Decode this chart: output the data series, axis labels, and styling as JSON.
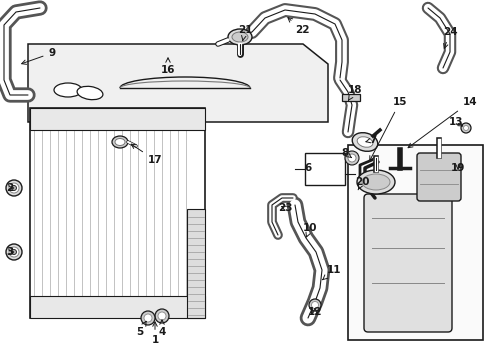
{
  "bg_color": "#ffffff",
  "line_color": "#1a1a1a",
  "lw_hose": 1.8,
  "lw_part": 1.0,
  "label_fontsize": 7.5,
  "fig_width": 4.9,
  "fig_height": 3.6,
  "dpi": 100
}
